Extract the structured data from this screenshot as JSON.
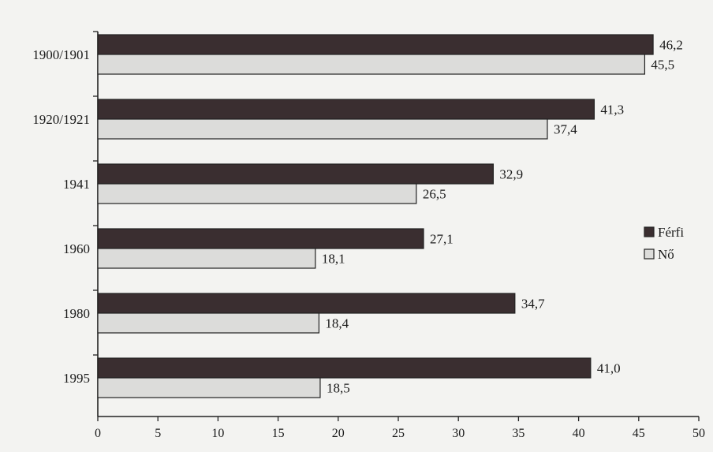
{
  "chart_data": {
    "type": "bar",
    "orientation": "horizontal",
    "categories": [
      "1900/1901",
      "1920/1921",
      "1941",
      "1960",
      "1980",
      "1995"
    ],
    "series": [
      {
        "name": "Férfi",
        "values": [
          46.2,
          41.3,
          32.9,
          27.1,
          34.7,
          41.0
        ],
        "labels": [
          "46,2",
          "41,3",
          "32,9",
          "27,1",
          "34,7",
          "41,0"
        ],
        "color": "#3a2e30"
      },
      {
        "name": "Nő",
        "values": [
          45.5,
          37.4,
          26.5,
          18.1,
          18.4,
          18.5
        ],
        "labels": [
          "45,5",
          "37,4",
          "26,5",
          "18,1",
          "18,4",
          "18,5"
        ],
        "color": "#dcdcda"
      }
    ],
    "xlim": [
      0,
      50
    ],
    "xticks": [
      0,
      5,
      10,
      15,
      20,
      25,
      30,
      35,
      40,
      45,
      50
    ],
    "legend_position": "right",
    "grid": false
  }
}
